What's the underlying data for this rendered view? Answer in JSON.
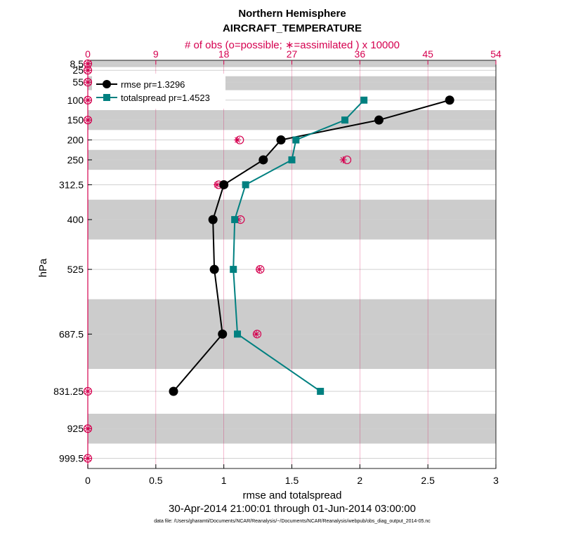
{
  "colors": {
    "obs_axis": "#d5004f",
    "rmse": "#000000",
    "spread": "#008080",
    "band": "#cccccc",
    "grid": "#d0d0d0"
  },
  "chart_data": {
    "type": "line",
    "title": "Northern Hemisphere",
    "subtitle": "AIRCRAFT_TEMPERATURE",
    "top_axis_label": "# of obs (o=possible; ∗=assimilated ) x 10000",
    "xlabel": "rmse and totalspread",
    "ylabel": "hPa",
    "date_range": "30-Apr-2014 21:00:01 through 01-Jun-2014 03:00:00",
    "data_file": "data file: /Users/gharamti/Documents/NCAR/Reanalysis/~/Documents/NCAR/Reanalysis/webpub/obs_diag_output_2014-05.nc",
    "xlim": [
      0,
      3
    ],
    "x_ticks": [
      "0",
      "0.5",
      "1",
      "1.5",
      "2",
      "2.5",
      "3"
    ],
    "x_tick_values": [
      0,
      0.5,
      1,
      1.5,
      2,
      2.5,
      3
    ],
    "top_xlim": [
      0,
      54
    ],
    "top_ticks": [
      "0",
      "9",
      "18",
      "27",
      "36",
      "45",
      "54"
    ],
    "top_tick_values": [
      0,
      9,
      18,
      27,
      36,
      45,
      54
    ],
    "ylim": [
      1025,
      0
    ],
    "y_ticks": [
      "8.5",
      "25",
      "55",
      "100",
      "150",
      "200",
      "250",
      "312.5",
      "400",
      "525",
      "687.5",
      "831.25",
      "925",
      "999.5"
    ],
    "y_tick_values": [
      8.5,
      25,
      55,
      100,
      150,
      200,
      250,
      312.5,
      400,
      525,
      687.5,
      831.25,
      925,
      999.5
    ],
    "layer_bounds": [
      0,
      17,
      40,
      75,
      125,
      175,
      225,
      275,
      350,
      450,
      600,
      775,
      887.5,
      962.5,
      1025
    ],
    "series": [
      {
        "name": "rmse",
        "legend": "rmse pr=1.3296",
        "levels": [
          100,
          150,
          200,
          250,
          312.5,
          400,
          525,
          687.5,
          831.25
        ],
        "values": [
          2.66,
          2.14,
          1.42,
          1.29,
          1.0,
          0.92,
          0.93,
          0.99,
          0.63
        ]
      },
      {
        "name": "totalspread",
        "legend": "totalspread pr=1.4523",
        "levels": [
          100,
          150,
          200,
          250,
          312.5,
          400,
          525,
          687.5,
          831.25
        ],
        "values": [
          2.03,
          1.89,
          1.53,
          1.5,
          1.16,
          1.08,
          1.07,
          1.1,
          1.71
        ]
      }
    ],
    "obs_possible": {
      "levels": [
        8.5,
        25,
        55,
        100,
        150,
        200,
        250,
        312.5,
        400,
        525,
        687.5,
        831.25,
        925,
        999.5
      ],
      "values": [
        0,
        0,
        0,
        0,
        0,
        20.1,
        34.3,
        17.3,
        20.2,
        22.8,
        22.4,
        0,
        0,
        0
      ]
    },
    "obs_assimilated": {
      "levels": [
        8.5,
        25,
        55,
        100,
        150,
        200,
        250,
        312.5,
        400,
        525,
        687.5,
        831.25,
        925,
        999.5
      ],
      "values": [
        0,
        0,
        0,
        0,
        0,
        19.8,
        33.8,
        17.1,
        19.9,
        22.7,
        22.3,
        0,
        0,
        0
      ]
    }
  }
}
